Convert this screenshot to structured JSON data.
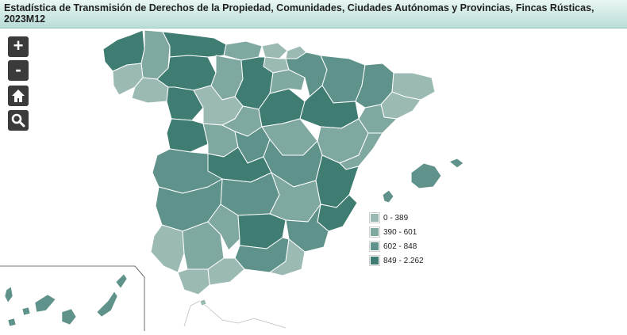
{
  "title": {
    "line1": "Estadística de Transmisión de Derechos de la Propiedad, Comunidades, Ciudades Autónomas y Provincias, Fincas Rústicas,",
    "line2": "2023M12"
  },
  "controls": {
    "zoom_in_label": "+",
    "zoom_out_label": "-",
    "home_icon": "home-icon",
    "search_icon": "search-icon"
  },
  "legend": {
    "items": [
      {
        "label": "0 - 389",
        "color": "#9bbab4"
      },
      {
        "label": "390 - 601",
        "color": "#7fa8a0"
      },
      {
        "label": "602 - 848",
        "color": "#5e928a"
      },
      {
        "label": "849 - 2.262",
        "color": "#3f7c72"
      }
    ]
  },
  "colors": {
    "title_gradient_top": "#e9f6f4",
    "title_gradient_bottom": "#b9ddd8",
    "borders": "#ffffff"
  }
}
